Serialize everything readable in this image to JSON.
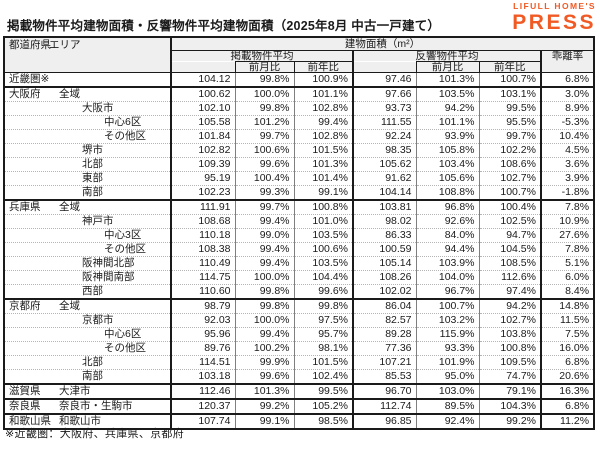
{
  "page": {
    "footnote": "※近畿圏：大阪府、兵庫県、京都府"
  },
  "logo": {
    "top_text": "LIFULL HOME'S",
    "main_text": "PRESS",
    "color": "#F15A24"
  },
  "chart_data": {
    "type": "table",
    "title": "掲載物件平均建物面積・反響物件平均建物面積（2025年8月 中古一戸建て）",
    "header": {
      "col_pref": "都道府県",
      "col_area": "エリア",
      "group": "建物面積（m²）",
      "listed": "掲載物件平均",
      "response": "反響物件平均",
      "mom": "前月比",
      "yoy": "前年比",
      "deviation": "乖離率"
    },
    "columns": [
      "都道府県",
      "エリア",
      "掲載物件平均",
      "前月比",
      "前年比",
      "反響物件平均",
      "前月比",
      "前年比",
      "乖離率"
    ],
    "rows": [
      {
        "pref": "近畿圏※",
        "area": "",
        "indent": 0,
        "group_start": false,
        "values": [
          "104.12",
          "99.8%",
          "100.9%",
          "97.46",
          "101.3%",
          "100.7%",
          "6.8%"
        ]
      },
      {
        "pref": "大阪府",
        "area": "全域",
        "indent": 1,
        "group_start": true,
        "values": [
          "100.62",
          "100.0%",
          "101.1%",
          "97.66",
          "103.5%",
          "103.1%",
          "3.0%"
        ]
      },
      {
        "pref": "",
        "area": "大阪市",
        "indent": 2,
        "group_start": false,
        "values": [
          "102.10",
          "99.8%",
          "102.8%",
          "93.73",
          "94.2%",
          "99.5%",
          "8.9%"
        ]
      },
      {
        "pref": "",
        "area": "中心6区",
        "indent": 3,
        "group_start": false,
        "values": [
          "105.58",
          "101.2%",
          "99.4%",
          "111.55",
          "101.1%",
          "95.5%",
          "-5.3%"
        ]
      },
      {
        "pref": "",
        "area": "その他区",
        "indent": 3,
        "group_start": false,
        "values": [
          "101.84",
          "99.7%",
          "102.8%",
          "92.24",
          "93.9%",
          "99.7%",
          "10.4%"
        ]
      },
      {
        "pref": "",
        "area": "堺市",
        "indent": 2,
        "group_start": false,
        "values": [
          "102.82",
          "100.6%",
          "101.5%",
          "98.35",
          "105.8%",
          "102.2%",
          "4.5%"
        ]
      },
      {
        "pref": "",
        "area": "北部",
        "indent": 2,
        "group_start": false,
        "values": [
          "109.39",
          "99.6%",
          "101.3%",
          "105.62",
          "103.4%",
          "108.6%",
          "3.6%"
        ]
      },
      {
        "pref": "",
        "area": "東部",
        "indent": 2,
        "group_start": false,
        "values": [
          "95.19",
          "100.4%",
          "101.4%",
          "91.62",
          "105.6%",
          "102.7%",
          "3.9%"
        ]
      },
      {
        "pref": "",
        "area": "南部",
        "indent": 2,
        "group_start": false,
        "values": [
          "102.23",
          "99.3%",
          "99.1%",
          "104.14",
          "108.8%",
          "100.7%",
          "-1.8%"
        ]
      },
      {
        "pref": "兵庫県",
        "area": "全域",
        "indent": 1,
        "group_start": true,
        "values": [
          "111.91",
          "99.7%",
          "100.8%",
          "103.81",
          "96.8%",
          "100.4%",
          "7.8%"
        ]
      },
      {
        "pref": "",
        "area": "神戸市",
        "indent": 2,
        "group_start": false,
        "values": [
          "108.68",
          "99.4%",
          "101.0%",
          "98.02",
          "92.6%",
          "102.5%",
          "10.9%"
        ]
      },
      {
        "pref": "",
        "area": "中心3区",
        "indent": 3,
        "group_start": false,
        "values": [
          "110.18",
          "99.0%",
          "103.5%",
          "86.33",
          "84.0%",
          "94.7%",
          "27.6%"
        ]
      },
      {
        "pref": "",
        "area": "その他区",
        "indent": 3,
        "group_start": false,
        "values": [
          "108.38",
          "99.4%",
          "100.6%",
          "100.59",
          "94.4%",
          "104.5%",
          "7.8%"
        ]
      },
      {
        "pref": "",
        "area": "阪神間北部",
        "indent": 2,
        "group_start": false,
        "values": [
          "110.49",
          "99.4%",
          "103.5%",
          "105.14",
          "103.9%",
          "108.5%",
          "5.1%"
        ]
      },
      {
        "pref": "",
        "area": "阪神間南部",
        "indent": 2,
        "group_start": false,
        "values": [
          "114.75",
          "100.0%",
          "104.4%",
          "108.26",
          "104.0%",
          "112.6%",
          "6.0%"
        ]
      },
      {
        "pref": "",
        "area": "西部",
        "indent": 2,
        "group_start": false,
        "values": [
          "110.60",
          "99.8%",
          "99.6%",
          "102.02",
          "96.7%",
          "97.4%",
          "8.4%"
        ]
      },
      {
        "pref": "京都府",
        "area": "全域",
        "indent": 1,
        "group_start": true,
        "values": [
          "98.79",
          "99.8%",
          "99.8%",
          "86.04",
          "100.7%",
          "94.2%",
          "14.8%"
        ]
      },
      {
        "pref": "",
        "area": "京都市",
        "indent": 2,
        "group_start": false,
        "values": [
          "92.03",
          "100.0%",
          "97.5%",
          "82.57",
          "103.2%",
          "102.7%",
          "11.5%"
        ]
      },
      {
        "pref": "",
        "area": "中心6区",
        "indent": 3,
        "group_start": false,
        "values": [
          "95.96",
          "99.4%",
          "95.7%",
          "89.28",
          "115.9%",
          "103.8%",
          "7.5%"
        ]
      },
      {
        "pref": "",
        "area": "その他区",
        "indent": 3,
        "group_start": false,
        "values": [
          "89.76",
          "100.2%",
          "98.1%",
          "77.36",
          "93.3%",
          "100.8%",
          "16.0%"
        ]
      },
      {
        "pref": "",
        "area": "北部",
        "indent": 2,
        "group_start": false,
        "values": [
          "114.51",
          "99.9%",
          "101.5%",
          "107.21",
          "101.9%",
          "109.5%",
          "6.8%"
        ]
      },
      {
        "pref": "",
        "area": "南部",
        "indent": 2,
        "group_start": false,
        "values": [
          "103.18",
          "99.6%",
          "102.4%",
          "85.53",
          "95.0%",
          "74.7%",
          "20.6%"
        ]
      },
      {
        "pref": "滋賀県",
        "area": "大津市",
        "indent": 1,
        "group_start": true,
        "values": [
          "112.46",
          "101.3%",
          "99.5%",
          "96.70",
          "103.0%",
          "79.1%",
          "16.3%"
        ]
      },
      {
        "pref": "奈良県",
        "area": "奈良市・生駒市",
        "indent": 1,
        "group_start": true,
        "values": [
          "120.37",
          "99.2%",
          "105.2%",
          "112.74",
          "89.5%",
          "104.3%",
          "6.8%"
        ]
      },
      {
        "pref": "和歌山県",
        "area": "和歌山市",
        "indent": 1,
        "group_start": true,
        "values": [
          "107.74",
          "99.1%",
          "98.5%",
          "96.85",
          "92.4%",
          "99.2%",
          "11.2%"
        ]
      }
    ]
  }
}
